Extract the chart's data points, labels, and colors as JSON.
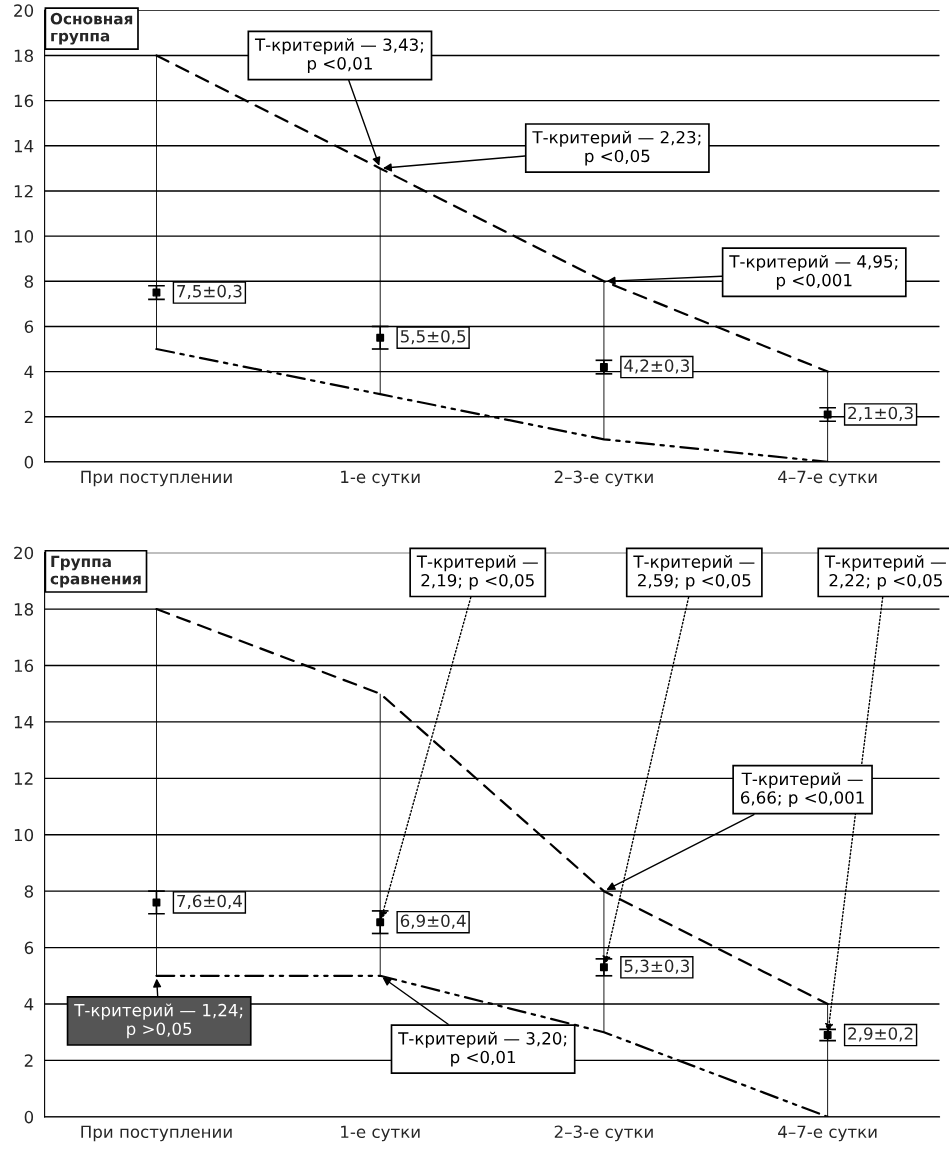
{
  "chart_data": [
    {
      "type": "line",
      "title": "Основная\nгруппа",
      "categories": [
        "При поступлении",
        "1-е сутки",
        "2–3-е сутки",
        "4–7-е сутки"
      ],
      "series": [
        {
          "type": "bar",
          "color": "#000000",
          "base": [
            5,
            3,
            1,
            0
          ],
          "values": [
            13,
            10,
            7,
            4
          ]
        },
        {
          "color": "#000000",
          "line_style": "dashed",
          "values": [
            18,
            13,
            8,
            4
          ]
        },
        {
          "color": "#000000",
          "line_style": "dashdot",
          "values": [
            5,
            3,
            1,
            0
          ]
        },
        {
          "type": "scatter",
          "color": "#000000",
          "values": [
            7.5,
            5.5,
            4.2,
            2.1
          ],
          "errors": [
            0.3,
            0.5,
            0.3,
            0.3
          ],
          "value_labels": [
            "7,5±0,3",
            "5,5±0,5",
            "4,2±0,3",
            "2,1±0,3"
          ]
        }
      ],
      "ylim": [
        0,
        20
      ],
      "yticks": [
        0,
        2,
        4,
        6,
        8,
        10,
        12,
        14,
        16,
        18,
        20
      ],
      "grid": "y",
      "annotations": [
        {
          "text": "Т-критерий — 3,43;\np <0,01",
          "x": "1-е сутки",
          "y": 13
        },
        {
          "text": "Т-критерий — 2,23;\np <0,05",
          "x": "1-е сутки",
          "y": 13
        },
        {
          "text": "Т-критерий — 4,95;\np <0,001",
          "x": "2–3-е сутки",
          "y": 8
        }
      ]
    },
    {
      "type": "line",
      "title": "Группа\nсравнения",
      "categories": [
        "При поступлении",
        "1-е сутки",
        "2–3-е сутки",
        "4–7-е сутки"
      ],
      "series": [
        {
          "type": "bar",
          "color": "#000000",
          "base": [
            5,
            5,
            3,
            0
          ],
          "values": [
            13,
            10,
            5,
            4
          ]
        },
        {
          "color": "#000000",
          "line_style": "dashed",
          "values": [
            18,
            15,
            8,
            4
          ]
        },
        {
          "color": "#000000",
          "line_style": "dashdot",
          "values": [
            5,
            5,
            3,
            0
          ]
        },
        {
          "type": "scatter",
          "color": "#000000",
          "values": [
            7.6,
            6.9,
            5.3,
            2.9
          ],
          "errors": [
            0.4,
            0.4,
            0.3,
            0.2
          ],
          "value_labels": [
            "7,6±0,4",
            "6,9±0,4",
            "5,3±0,3",
            "2,9±0,2"
          ]
        }
      ],
      "ylim": [
        0,
        20
      ],
      "yticks": [
        0,
        2,
        4,
        6,
        8,
        10,
        12,
        14,
        16,
        18,
        20
      ],
      "grid": "y",
      "annotations": [
        {
          "text": "Т-критерий —\n2,19; p <0,05",
          "x": "1-е сутки",
          "y": 6.9
        },
        {
          "text": "Т-критерий —\n2,59; p <0,05",
          "x": "2–3-е сутки",
          "y": 5.3
        },
        {
          "text": "Т-критерий —\n2,22; p <0,05",
          "x": "4–7-е сутки",
          "y": 2.9
        },
        {
          "text": "Т-критерий —\n6,66; p <0,001",
          "x": "2–3-е сутки",
          "y": 8
        },
        {
          "text": "Т-критерий — 1,24;\np >0,05",
          "x": "При поступлении",
          "y": 5
        },
        {
          "text": "Т-критерий — 3,20;\np <0,01",
          "x": "1-е сутки",
          "y": 5
        }
      ]
    }
  ]
}
